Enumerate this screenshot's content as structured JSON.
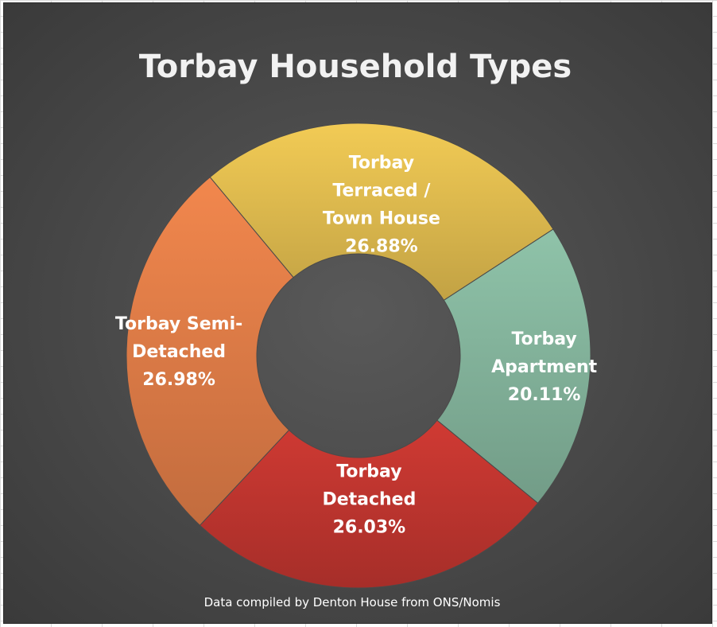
{
  "chart_data": {
    "type": "pie",
    "variant": "doughnut",
    "title": "Torbay Household Types",
    "source_note": "Data compiled by Denton House from ONS/Nomis",
    "slices": [
      {
        "name": "Torbay Apartment",
        "value": 20.11,
        "label_lines": [
          "Torbay",
          "Apartment",
          "20.11%"
        ],
        "color": "#8fc3a9"
      },
      {
        "name": "Torbay Detached",
        "value": 26.03,
        "label_lines": [
          "Torbay",
          "Detached",
          "26.03%"
        ],
        "color": "#d03a33"
      },
      {
        "name": "Torbay Semi-Detached",
        "value": 26.98,
        "label_lines": [
          "Torbay Semi-",
          "Detached",
          "26.98%"
        ],
        "color": "#f2874d"
      },
      {
        "name": "Torbay Terraced / Town House",
        "value": 26.88,
        "label_lines": [
          "Torbay",
          "Terraced /",
          "Town House",
          "26.88%"
        ],
        "color": "#f2cb55"
      }
    ],
    "start_angle_deg": 57,
    "direction": "clockwise",
    "legend": "none"
  }
}
